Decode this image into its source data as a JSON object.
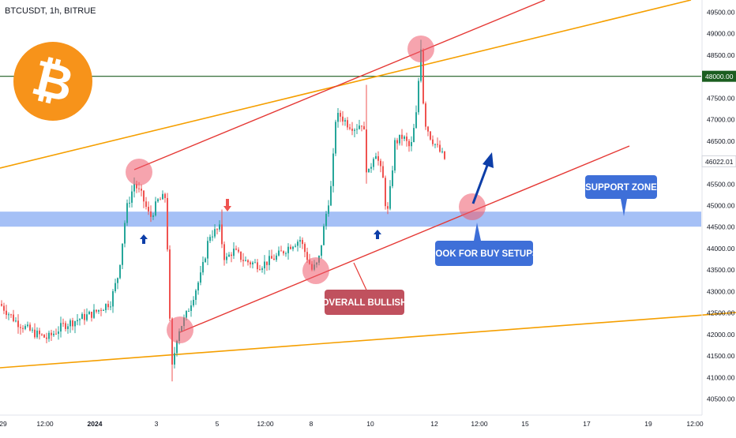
{
  "header": {
    "symbol": "BTCUSDT, 1h, BITRUE"
  },
  "chart_data": {
    "type": "candlestick",
    "symbol": "BTCUSDT",
    "timeframe": "1h",
    "exchange": "BITRUE",
    "y_axis": {
      "side": "right",
      "ylim": [
        40200,
        49800
      ],
      "ticks": [
        40500,
        41000,
        41500,
        42000,
        42500,
        43000,
        43500,
        44000,
        44500,
        45000,
        45500,
        46000,
        46500,
        47000,
        47500,
        48000,
        48500,
        49000,
        49500
      ],
      "tick_labels": [
        "40500.00",
        "41000.00",
        "41500.00",
        "42000.00",
        "42500.00",
        "43000.00",
        "43500.00",
        "44000.00",
        "44500.00",
        "45000.00",
        "45500.00",
        "46000.00",
        "46500.00",
        "47000.00",
        "47500.00",
        "48000.00",
        "48500.00",
        "49000.00",
        "49500.00"
      ]
    },
    "x_axis": {
      "ticks": [
        {
          "label": "29",
          "bold": false
        },
        {
          "label": "12:00",
          "bold": false
        },
        {
          "label": "2024",
          "bold": true
        },
        {
          "label": "3",
          "bold": false
        },
        {
          "label": "5",
          "bold": false
        },
        {
          "label": "12:00",
          "bold": false
        },
        {
          "label": "8",
          "bold": false
        },
        {
          "label": "10",
          "bold": false
        },
        {
          "label": "12",
          "bold": false
        },
        {
          "label": "12:00",
          "bold": false
        },
        {
          "label": "15",
          "bold": false
        },
        {
          "label": "17",
          "bold": false
        },
        {
          "label": "19",
          "bold": false
        },
        {
          "label": "12:00",
          "bold": false
        }
      ]
    },
    "current_price": {
      "value": 46022.01,
      "label": "46022.01",
      "color": "#26a69a"
    },
    "horizontal_level": {
      "value": 48000,
      "label": "48000.00",
      "color": "#1b5e20"
    },
    "support_zone": {
      "from": 44500,
      "to": 44850,
      "color": "#5b8def"
    },
    "key_points": [
      {
        "label": "low",
        "value": 40900
      },
      {
        "label": "local top",
        "value": 45750
      },
      {
        "label": "high",
        "value": 48850
      },
      {
        "label": "last",
        "value": 46022.01
      }
    ],
    "colors": {
      "up": "#26a69a",
      "down": "#ef5350",
      "channel": "#e53935",
      "outer_channel": "#f59f00",
      "bitcoin": "#f7931a",
      "label_blue": "#3e6fd8",
      "label_red": "#c0515e",
      "arrow_blue": "#0d3ea8"
    },
    "annotations": {
      "support": "SUPPORT ZONE",
      "buy": "LOOK FOR BUY SETUPS",
      "bullish": "OVERALL BULLISH"
    },
    "logo": {
      "glyph": "₿"
    }
  }
}
